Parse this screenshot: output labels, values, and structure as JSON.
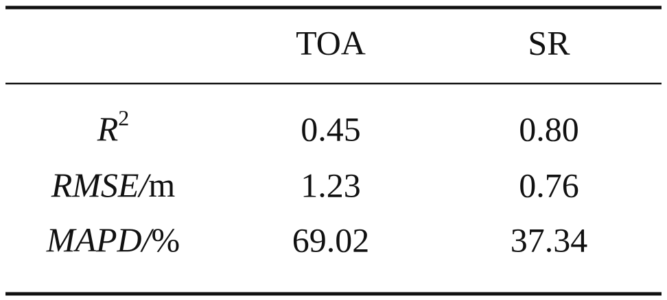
{
  "table": {
    "header": [
      "TOA",
      "SR"
    ],
    "rows": [
      {
        "label": [
          {
            "text": "R",
            "style": "italic"
          },
          {
            "text": "2",
            "style": "sup"
          }
        ],
        "values": [
          "0.45",
          "0.80"
        ]
      },
      {
        "label": [
          {
            "text": "RMSE/",
            "style": "italic"
          },
          {
            "text": "m",
            "style": "roman"
          }
        ],
        "values": [
          "1.23",
          "0.76"
        ]
      },
      {
        "label": [
          {
            "text": "MAPD/",
            "style": "italic"
          },
          {
            "text": "%",
            "style": "roman"
          }
        ],
        "values": [
          "69.02",
          "37.34"
        ]
      }
    ]
  }
}
